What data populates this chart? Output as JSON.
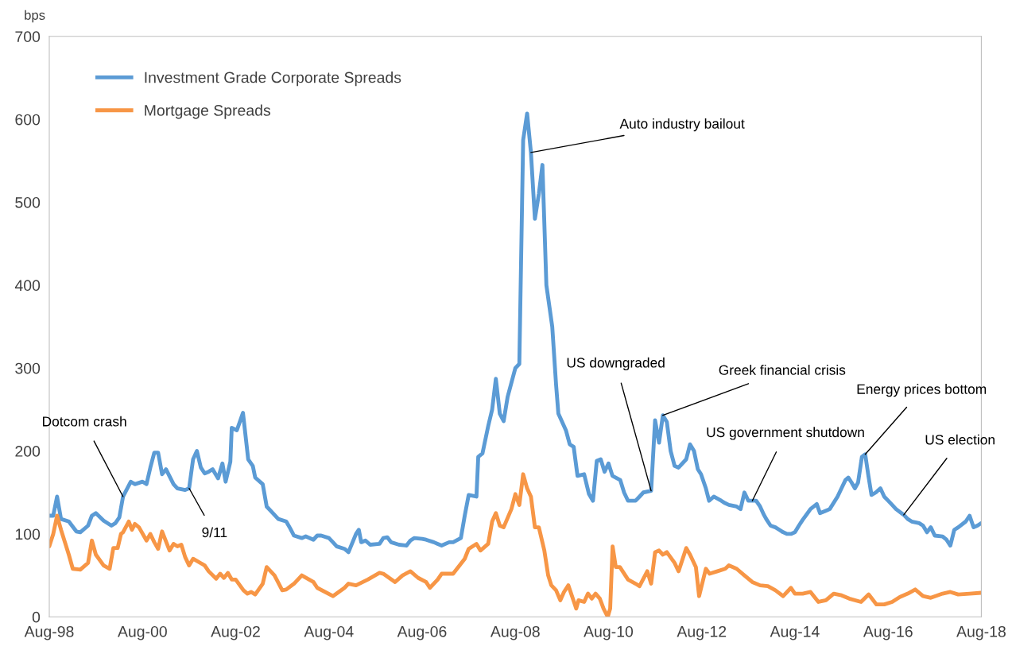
{
  "chart_data": {
    "type": "line",
    "ylabel": "bps",
    "xlim": [
      "1998-08",
      "2018-08"
    ],
    "xticks": [
      {
        "value": "1998-08",
        "label": "Aug-98"
      },
      {
        "value": "2000-08",
        "label": "Aug-00"
      },
      {
        "value": "2002-08",
        "label": "Aug-02"
      },
      {
        "value": "2004-08",
        "label": "Aug-04"
      },
      {
        "value": "2006-08",
        "label": "Aug-06"
      },
      {
        "value": "2008-08",
        "label": "Aug-08"
      },
      {
        "value": "2010-08",
        "label": "Aug-10"
      },
      {
        "value": "2012-08",
        "label": "Aug-12"
      },
      {
        "value": "2014-08",
        "label": "Aug-14"
      },
      {
        "value": "2016-08",
        "label": "Aug-16"
      },
      {
        "value": "2018-08",
        "label": "Aug-18"
      }
    ],
    "ylim": [
      0,
      700
    ],
    "yticks": [
      0,
      100,
      200,
      300,
      400,
      500,
      600,
      700
    ],
    "grid": false,
    "legend": "top left",
    "marker": "none",
    "line_style": "solid",
    "series": [
      {
        "name": "Investment Grade Corporate Spreads",
        "color": "#5b9bd5",
        "x": [
          "1998-08",
          "1998-09",
          "1998-10",
          "1998-11",
          "1999-01",
          "1999-03",
          "1999-04",
          "1999-06",
          "1999-07",
          "1999-08",
          "1999-10",
          "1999-12",
          "2000-01",
          "2000-02",
          "2000-03",
          "2000-05",
          "2000-06",
          "2000-08",
          "2000-09",
          "2000-10",
          "2000-11",
          "2000-12",
          "2001-01",
          "2001-02",
          "2001-04",
          "2001-05",
          "2001-07",
          "2001-08",
          "2001-09",
          "2001-10",
          "2001-11",
          "2001-12",
          "2002-01",
          "2002-02",
          "2002-03-16",
          "2002-04-19",
          "2002-05-14",
          "2002-06-20",
          "2002-07-01",
          "2002-08-10",
          "2002-09-27",
          "2002-11-07",
          "2002-12-13",
          "2003-01",
          "2003-03",
          "2003-04",
          "2003-05",
          "2003-07",
          "2003-09",
          "2003-10",
          "2003-11",
          "2004-01",
          "2004-02",
          "2004-04",
          "2004-05",
          "2004-06",
          "2004-08",
          "2004-09",
          "2004-10",
          "2004-12",
          "2005-01",
          "2005-03",
          "2005-03-23",
          "2005-04-11",
          "2005-05-14",
          "2005-06-20",
          "2005-09",
          "2005-10",
          "2005-11",
          "2005-12",
          "2006-02",
          "2006-04",
          "2006-05",
          "2006-06",
          "2006-08",
          "2006-09",
          "2006-11",
          "2006-12",
          "2007-01",
          "2007-03",
          "2007-04",
          "2007-06",
          "2007-07",
          "2007-08",
          "2007-10",
          "2007-10-15",
          "2007-11-17",
          "2008-01",
          "2008-02",
          "2008-03",
          "2008-04",
          "2008-05",
          "2008-06",
          "2008-08",
          "2008-09",
          "2008-10",
          "2008-11",
          "2008-12",
          "2009-01",
          "2009-02",
          "2009-03",
          "2009-04",
          "2009-05-17",
          "2009-06-16",
          "2009-07-04",
          "2009-09",
          "2009-10",
          "2009-11",
          "2009-12",
          "2010-01-22",
          "2010-02-10",
          "2010-03",
          "2010-04",
          "2010-05",
          "2010-06",
          "2010-07",
          "2010-08",
          "2010-09",
          "2010-11",
          "2010-12",
          "2011-01",
          "2011-03",
          "2011-04",
          "2011-05",
          "2011-07",
          "2011-08",
          "2011-09",
          "2011-10",
          "2011-11",
          "2011-12",
          "2012-01",
          "2012-02",
          "2012-04",
          "2012-05",
          "2012-06",
          "2012-07-01",
          "2012-07-26",
          "2012-09-02",
          "2012-09-27",
          "2012-11-03",
          "2013-01",
          "2013-02",
          "2013-03",
          "2013-05",
          "2013-06",
          "2013-07",
          "2013-08",
          "2013-09",
          "2013-10",
          "2013-11",
          "2013-12",
          "2013-12-23",
          "2014-01-22",
          "2014-03",
          "2014-04",
          "2014-05",
          "2014-06",
          "2014-07",
          "2014-08",
          "2014-09",
          "2014-10",
          "2014-12",
          "2015-01-19",
          "2015-02-14",
          "2015-04",
          "2015-05",
          "2015-07",
          "2015-08",
          "2015-09",
          "2015-09-23",
          "2015-10-19",
          "2015-11-14",
          "2015-12-09",
          "2016-01-08",
          "2016-02-03",
          "2016-02-28",
          "2016-03-23",
          "2016-04-26",
          "2016-06",
          "2016-07",
          "2016-08",
          "2016-09",
          "2016-10",
          "2016-12",
          "2017-01",
          "2017-02",
          "2017-04",
          "2017-05",
          "2017-06",
          "2017-07",
          "2017-08",
          "2017-10",
          "2017-11",
          "2017-12",
          "2018-01",
          "2018-02",
          "2018-04",
          "2018-05",
          "2018-06",
          "2018-07",
          "2018-08"
        ],
        "values": [
          122,
          122,
          145,
          118,
          115,
          103,
          102,
          110,
          122,
          125,
          116,
          110,
          113,
          120,
          145,
          163,
          160,
          163,
          160,
          180,
          198,
          198,
          172,
          178,
          160,
          155,
          153,
          155,
          190,
          200,
          180,
          173,
          175,
          178,
          167,
          185,
          163,
          187,
          228,
          225,
          246,
          190,
          182,
          168,
          160,
          133,
          128,
          118,
          115,
          107,
          98,
          95,
          97,
          93,
          98,
          98,
          95,
          90,
          85,
          82,
          78,
          100,
          105,
          90,
          92,
          87,
          88,
          95,
          96,
          90,
          87,
          86,
          92,
          95,
          94,
          93,
          90,
          88,
          86,
          90,
          90,
          95,
          122,
          147,
          145,
          193,
          197,
          230,
          250,
          287,
          245,
          236,
          265,
          300,
          305,
          575,
          607,
          560,
          480,
          510,
          545,
          400,
          350,
          280,
          245,
          225,
          208,
          205,
          170,
          172,
          160,
          148,
          140,
          188,
          190,
          175,
          185,
          170,
          165,
          150,
          140,
          140,
          145,
          150,
          152,
          237,
          210,
          243,
          235,
          200,
          182,
          180,
          190,
          208,
          200,
          178,
          172,
          155,
          140,
          145,
          140,
          137,
          135,
          133,
          130,
          150,
          140,
          140,
          140,
          133,
          123,
          117,
          110,
          108,
          105,
          102,
          100,
          100,
          102,
          110,
          117,
          130,
          136,
          125,
          128,
          130,
          145,
          155,
          165,
          168,
          162,
          155,
          162,
          193,
          196,
          170,
          147,
          150,
          155,
          145,
          140,
          135,
          130,
          123,
          118,
          115,
          113,
          110,
          102,
          108,
          98,
          97,
          93,
          86,
          105,
          108,
          115,
          122,
          108,
          110,
          113
        ]
      },
      {
        "name": "Mortgage Spreads",
        "color": "#f79646",
        "x": [
          "1998-08",
          "1998-09",
          "1998-10",
          "1998-11",
          "1999-01",
          "1999-02",
          "1999-04",
          "1999-06",
          "1999-07",
          "1999-08",
          "1999-10",
          "1999-11-17",
          "1999-12-16",
          "2000-01-19",
          "2000-02-14",
          "2000-03",
          "2000-04-15",
          "2000-05-10",
          "2000-06-02",
          "2000-07-04",
          "2000-09",
          "2000-10",
          "2000-11",
          "2000-12",
          "2001-01",
          "2001-03",
          "2001-04",
          "2001-05",
          "2001-06",
          "2001-07",
          "2001-08",
          "2001-09",
          "2001-12",
          "2002-01",
          "2002-03",
          "2002-04",
          "2002-05",
          "2002-06",
          "2002-07",
          "2002-08",
          "2002-10",
          "2002-11",
          "2002-12",
          "2003-01",
          "2003-03",
          "2003-04",
          "2003-06",
          "2003-08",
          "2003-09",
          "2003-11",
          "2004-01",
          "2004-04",
          "2004-05",
          "2004-09",
          "2004-12",
          "2005-01",
          "2005-03",
          "2005-06",
          "2005-09",
          "2005-10",
          "2006-01",
          "2006-03",
          "2006-05",
          "2006-07",
          "2006-09",
          "2006-10",
          "2006-12",
          "2007-01",
          "2007-04",
          "2007-07",
          "2007-08",
          "2007-10",
          "2007-11",
          "2008-01",
          "2008-02",
          "2008-03",
          "2008-04",
          "2008-05",
          "2008-07",
          "2008-08",
          "2008-09",
          "2008-10",
          "2008-11",
          "2008-12",
          "2009-01",
          "2009-02",
          "2009-03-16",
          "2009-04-15",
          "2009-05-10",
          "2009-06-16",
          "2009-07-19",
          "2009-08-17",
          "2009-09-20",
          "2009-10-19",
          "2009-11-21",
          "2009-12-09",
          "2010-01-22",
          "2010-02-21",
          "2010-03-23",
          "2010-04-22",
          "2010-05-25",
          "2010-06-23",
          "2010-07-26",
          "2010-08-14",
          "2010-09-02",
          "2010-09-27",
          "2010-10-29",
          "2011-01",
          "2011-03",
          "2011-04",
          "2011-06",
          "2011-07",
          "2011-08",
          "2011-09",
          "2011-10",
          "2011-11",
          "2012-01",
          "2012-02",
          "2012-04",
          "2012-05",
          "2012-06-16",
          "2012-07-11",
          "2012-09-02",
          "2012-10-01",
          "2012-12-02",
          "2013-02",
          "2013-03",
          "2013-05",
          "2013-07",
          "2013-09",
          "2013-11",
          "2014-01",
          "2014-03",
          "2014-05",
          "2014-07",
          "2014-08",
          "2014-10",
          "2014-12",
          "2015-02",
          "2015-04",
          "2015-06",
          "2015-08",
          "2015-10",
          "2016-01",
          "2016-03",
          "2016-05",
          "2016-07",
          "2016-09",
          "2016-11",
          "2017-01",
          "2017-03",
          "2017-05",
          "2017-07",
          "2017-10",
          "2017-12",
          "2018-02",
          "2018-05",
          "2018-08"
        ],
        "values": [
          85,
          100,
          122,
          105,
          75,
          58,
          57,
          65,
          92,
          75,
          62,
          58,
          83,
          83,
          100,
          102,
          115,
          105,
          112,
          108,
          92,
          100,
          90,
          82,
          103,
          80,
          88,
          85,
          87,
          72,
          62,
          70,
          62,
          55,
          46,
          52,
          47,
          53,
          45,
          45,
          32,
          28,
          30,
          27,
          40,
          60,
          50,
          32,
          33,
          40,
          50,
          42,
          35,
          25,
          35,
          40,
          38,
          45,
          53,
          52,
          42,
          50,
          55,
          47,
          42,
          35,
          45,
          52,
          52,
          70,
          82,
          88,
          80,
          88,
          115,
          125,
          110,
          108,
          130,
          148,
          135,
          172,
          155,
          145,
          108,
          108,
          80,
          50,
          38,
          32,
          20,
          30,
          38,
          25,
          10,
          20,
          18,
          28,
          22,
          28,
          22,
          10,
          0,
          10,
          85,
          60,
          60,
          45,
          40,
          37,
          55,
          40,
          78,
          80,
          75,
          78,
          65,
          55,
          83,
          75,
          60,
          25,
          58,
          52,
          55,
          58,
          62,
          58,
          50,
          42,
          38,
          37,
          32,
          25,
          35,
          28,
          28,
          30,
          18,
          20,
          28,
          26,
          22,
          18,
          27,
          15,
          15,
          18,
          24,
          28,
          33,
          25,
          23,
          28,
          30,
          27,
          28,
          29
        ]
      }
    ],
    "annotations": [
      {
        "text": "Dotcom crash",
        "x": "2000-03",
        "y": 145
      },
      {
        "text": "9/11",
        "x": "2001-08",
        "y": 155
      },
      {
        "text": "Auto industry bailout",
        "x": "2008-12",
        "y": 560
      },
      {
        "text": "US downgraded",
        "x": "2011-07",
        "y": 152
      },
      {
        "text": "Greek financial crisis",
        "x": "2011-10",
        "y": 243
      },
      {
        "text": "US government shutdown",
        "x": "2013-09",
        "y": 140
      },
      {
        "text": "Energy prices bottom",
        "x": "2016-02-03",
        "y": 196
      },
      {
        "text": "US election",
        "x": "2016-12",
        "y": 123
      }
    ]
  }
}
